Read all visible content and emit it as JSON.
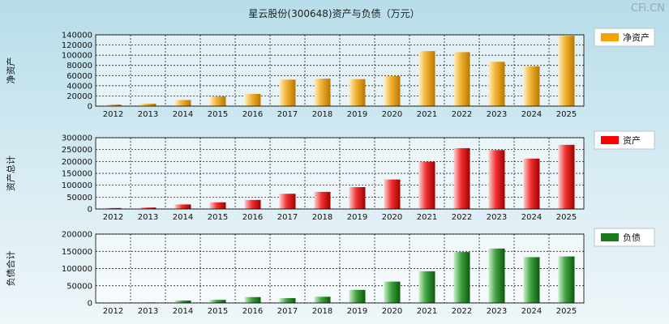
{
  "title": "星云股份(300648)资产与负债（万元）",
  "watermark": "CFi.CN",
  "chart_data": [
    {
      "type": "bar",
      "ylabel": "净资产",
      "legend": "净资产",
      "color": "#f6a400",
      "grad": [
        "#fff0c0",
        "#f0b030",
        "#b87800"
      ],
      "categories": [
        "2012",
        "2013",
        "2014",
        "2015",
        "2016",
        "2017",
        "2018",
        "2019",
        "2020",
        "2021",
        "2022",
        "2023",
        "2024",
        "2025"
      ],
      "values": [
        3200,
        4800,
        12000,
        19000,
        24000,
        52000,
        54000,
        53000,
        59000,
        108000,
        106000,
        87000,
        78000,
        138000
      ],
      "ylim": [
        0,
        140000
      ],
      "yticks": [
        0,
        20000,
        40000,
        60000,
        80000,
        100000,
        120000,
        140000
      ],
      "yticklabels": [
        "0",
        "20000",
        "40000",
        "60000",
        "80000",
        "100000",
        "120000",
        "140000"
      ]
    },
    {
      "type": "bar",
      "ylabel": "资产总计",
      "legend": "资产",
      "color": "#ff0000",
      "grad": [
        "#ffd0d0",
        "#f03030",
        "#a00000"
      ],
      "categories": [
        "2012",
        "2013",
        "2014",
        "2015",
        "2016",
        "2017",
        "2018",
        "2019",
        "2020",
        "2021",
        "2022",
        "2023",
        "2024",
        "2025"
      ],
      "values": [
        4000,
        6000,
        19000,
        28000,
        38000,
        64000,
        72000,
        92000,
        124000,
        199000,
        256000,
        248000,
        212000,
        270000
      ],
      "ylim": [
        0,
        300000
      ],
      "yticks": [
        0,
        50000,
        100000,
        150000,
        200000,
        250000,
        300000
      ],
      "yticklabels": [
        "0",
        "50000",
        "100000",
        "150000",
        "200000",
        "250000",
        "300000"
      ]
    },
    {
      "type": "bar",
      "ylabel": "负债合计",
      "legend": "负债",
      "color": "#1a7a1a",
      "grad": [
        "#c8f0c8",
        "#40a040",
        "#0a5a0a"
      ],
      "categories": [
        "2012",
        "2013",
        "2014",
        "2015",
        "2016",
        "2017",
        "2018",
        "2019",
        "2020",
        "2021",
        "2022",
        "2023",
        "2024",
        "2025"
      ],
      "values": [
        1000,
        1500,
        7000,
        9000,
        17000,
        14000,
        18000,
        38000,
        62000,
        92000,
        148000,
        158000,
        133000,
        135000
      ],
      "ylim": [
        0,
        200000
      ],
      "yticks": [
        0,
        50000,
        100000,
        150000,
        200000
      ],
      "yticklabels": [
        "0",
        "50000",
        "100000",
        "150000",
        "200000"
      ]
    }
  ]
}
